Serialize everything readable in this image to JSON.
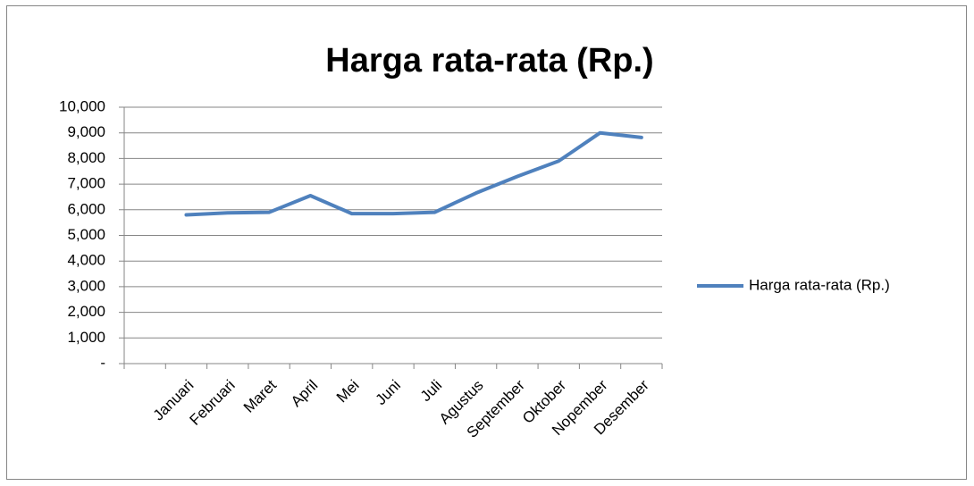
{
  "chart_data": {
    "type": "line",
    "title": "Harga rata-rata (Rp.)",
    "categories": [
      null,
      "Januari",
      "Februari",
      "Maret",
      "April",
      "Mei",
      "Juni",
      "Juli",
      "Agustus",
      "September",
      "Oktober",
      "Nopember",
      "Desember"
    ],
    "series": [
      {
        "name": "Harga rata-rata (Rp.)",
        "color": "#4f81bd",
        "values": [
          null,
          5800,
          5880,
          5900,
          6550,
          5850,
          5850,
          5900,
          6650,
          7300,
          7900,
          9000,
          8820
        ]
      }
    ],
    "ylim": [
      0,
      10000
    ],
    "yticks": [
      {
        "value": 0,
        "label": "-"
      },
      {
        "value": 1000,
        "label": "1,000"
      },
      {
        "value": 2000,
        "label": "2,000"
      },
      {
        "value": 3000,
        "label": "3,000"
      },
      {
        "value": 4000,
        "label": "4,000"
      },
      {
        "value": 5000,
        "label": "5,000"
      },
      {
        "value": 6000,
        "label": "6,000"
      },
      {
        "value": 7000,
        "label": "7,000"
      },
      {
        "value": 8000,
        "label": "8,000"
      },
      {
        "value": 9000,
        "label": "9,000"
      },
      {
        "value": 10000,
        "label": "10,000"
      }
    ],
    "grid": true,
    "legend": "right"
  }
}
